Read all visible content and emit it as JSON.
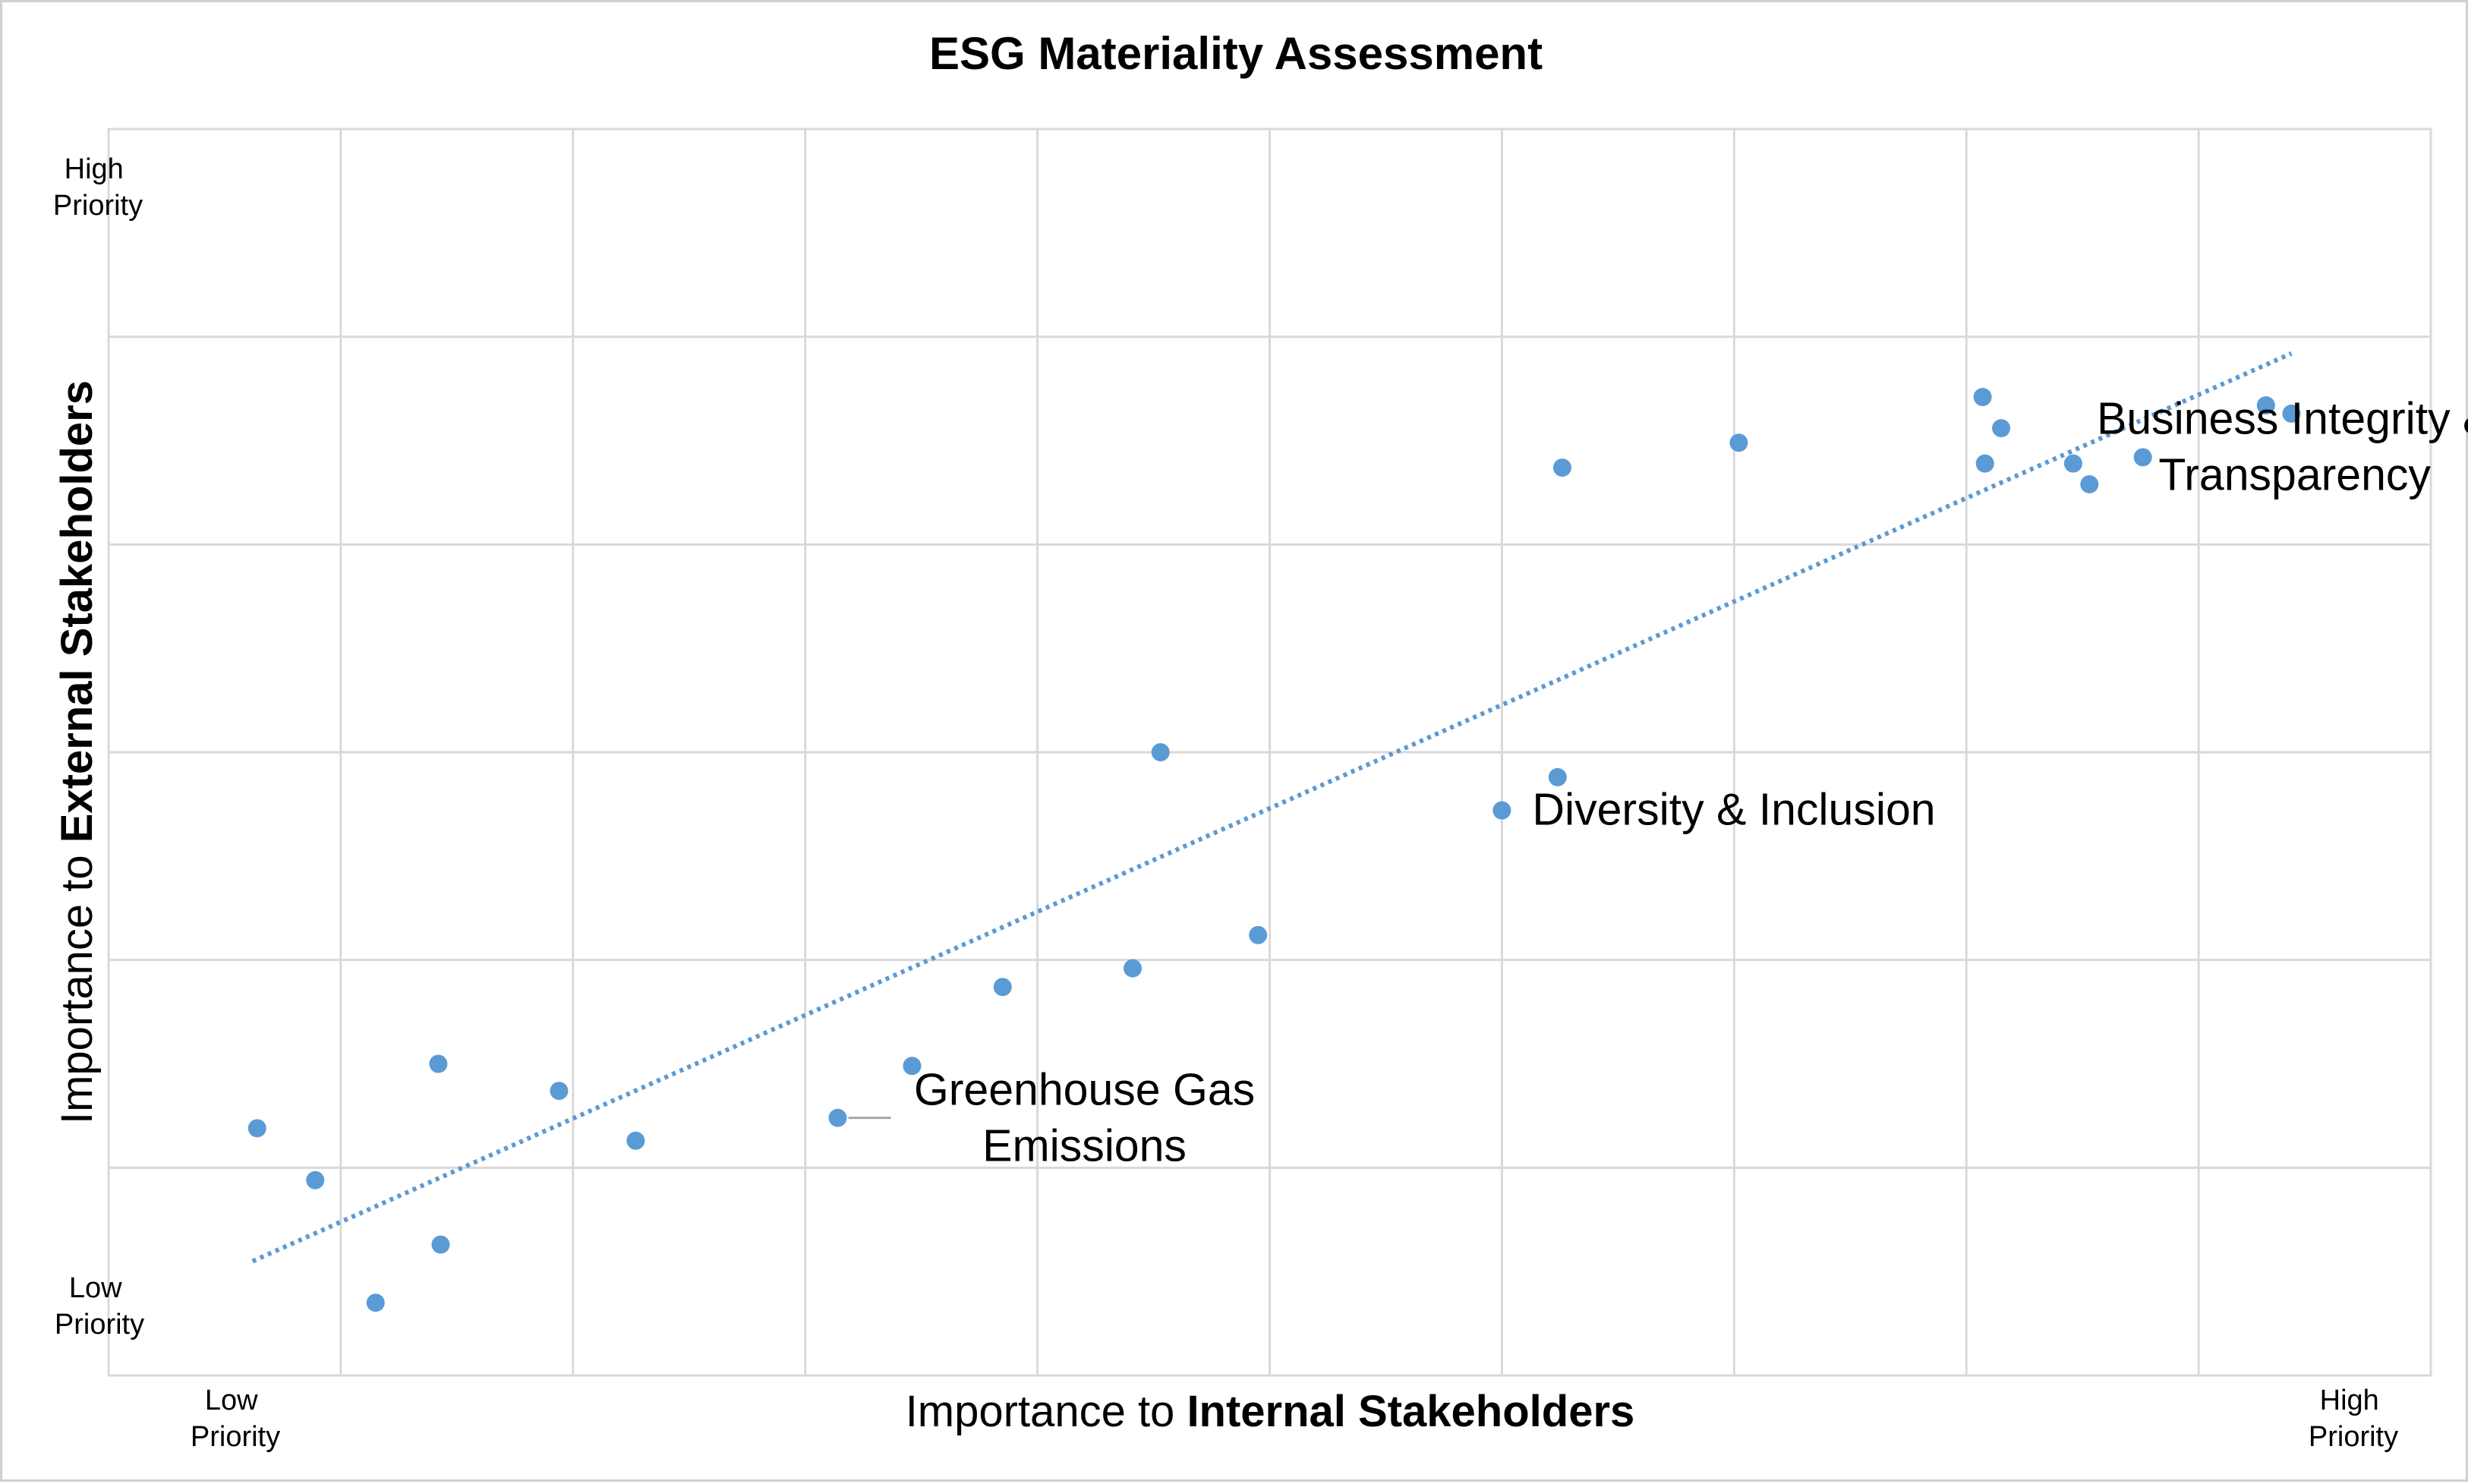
{
  "chart_data": {
    "type": "scatter",
    "title": "ESG Materiality Assessment",
    "xlabel_prefix": "Importance to ",
    "xlabel_bold": "Internal Stakeholders",
    "ylabel_prefix": "Importance to ",
    "ylabel_bold": "External Stakeholders",
    "x_low_label": [
      "Low",
      "Priority"
    ],
    "x_high_label": [
      "High",
      "Priority"
    ],
    "y_low_label": [
      "Low",
      "Priority"
    ],
    "y_high_label": [
      "High",
      "Priority"
    ],
    "xlim": [
      0,
      10
    ],
    "ylim": [
      0,
      6
    ],
    "grid": true,
    "legend": "none",
    "colors": {
      "points": "#5b9bd5",
      "trendline": "#5b9bd5",
      "grid": "#d9d9d9",
      "text": "#000000",
      "leader": "#a6a6a6"
    },
    "points": [
      {
        "x": 0.64,
        "y": 1.19
      },
      {
        "x": 0.89,
        "y": 0.94
      },
      {
        "x": 1.15,
        "y": 0.35
      },
      {
        "x": 1.42,
        "y": 1.5
      },
      {
        "x": 1.43,
        "y": 0.63
      },
      {
        "x": 1.94,
        "y": 1.37
      },
      {
        "x": 2.27,
        "y": 1.13
      },
      {
        "x": 3.14,
        "y": 1.24
      },
      {
        "x": 3.46,
        "y": 1.49
      },
      {
        "x": 3.85,
        "y": 1.87
      },
      {
        "x": 4.53,
        "y": 3.0
      },
      {
        "x": 4.41,
        "y": 1.96
      },
      {
        "x": 4.95,
        "y": 2.12
      },
      {
        "x": 6.0,
        "y": 2.72
      },
      {
        "x": 6.24,
        "y": 2.88
      },
      {
        "x": 6.26,
        "y": 4.37
      },
      {
        "x": 7.02,
        "y": 4.49
      },
      {
        "x": 8.07,
        "y": 4.71
      },
      {
        "x": 8.15,
        "y": 4.56
      },
      {
        "x": 8.08,
        "y": 4.39
      },
      {
        "x": 8.46,
        "y": 4.39
      },
      {
        "x": 8.53,
        "y": 4.29
      },
      {
        "x": 8.76,
        "y": 4.42
      },
      {
        "x": 9.29,
        "y": 4.67
      },
      {
        "x": 9.4,
        "y": 4.63
      }
    ],
    "trendline": {
      "style": "dotted",
      "x": [
        0.62,
        9.4
      ],
      "y": [
        0.55,
        4.92
      ]
    },
    "annotations": [
      {
        "lines": [
          "Business Integrity &",
          "Transparency"
        ],
        "x": 8.76,
        "y": 4.42
      },
      {
        "lines": [
          "Diversity & Inclusion"
        ],
        "x": 6.0,
        "y": 2.72
      },
      {
        "lines": [
          "Greenhouse Gas",
          "Emissions"
        ],
        "x": 3.14,
        "y": 1.24
      }
    ]
  }
}
